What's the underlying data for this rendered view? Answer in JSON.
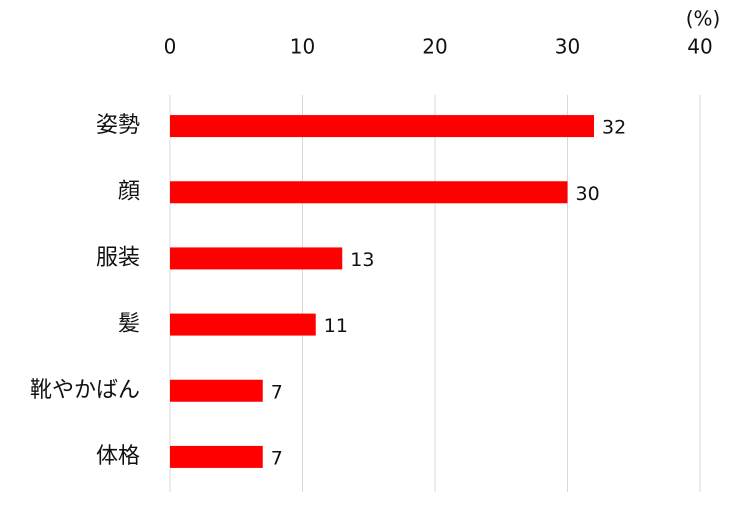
{
  "chart_data": {
    "type": "bar",
    "orientation": "horizontal",
    "x_label": "(%)",
    "categories": [
      "姿勢",
      "顔",
      "服装",
      "髪",
      "靴やかばん",
      "体格"
    ],
    "values": [
      32,
      30,
      13,
      11,
      7,
      7
    ],
    "color": "#ff0000",
    "xlim": [
      0,
      40
    ],
    "xticks": [
      0,
      10,
      20,
      30,
      40
    ],
    "grid": true
  }
}
